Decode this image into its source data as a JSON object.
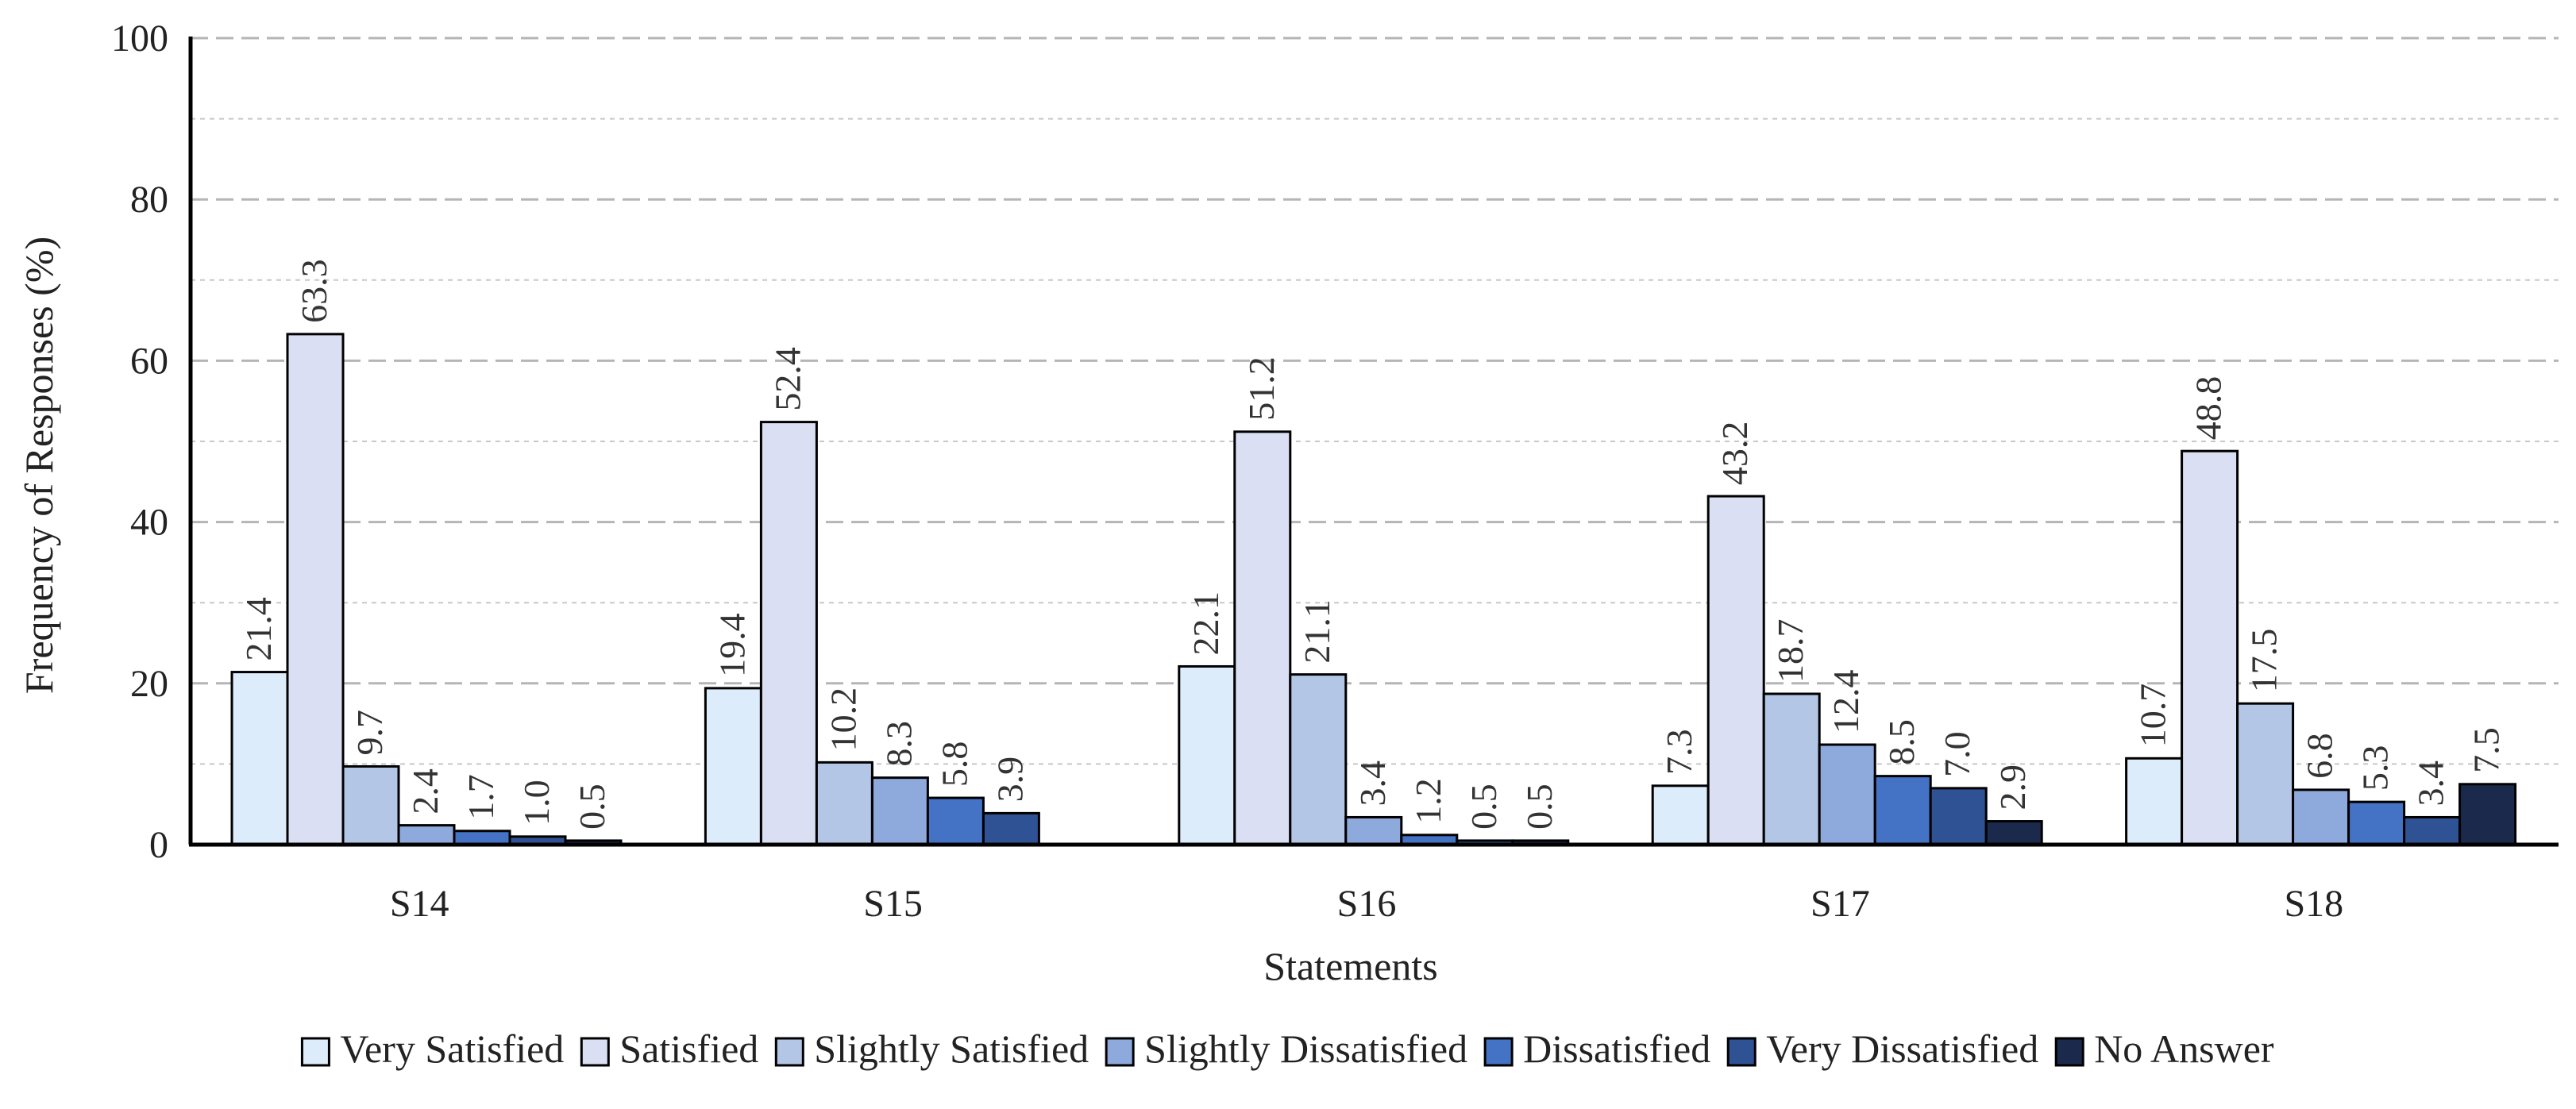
{
  "chart_data": {
    "type": "bar",
    "title": "",
    "xlabel": "Statements",
    "ylabel": "Frequency of Responses (%)",
    "ylim": [
      0,
      100
    ],
    "yticks": [
      0,
      20,
      40,
      60,
      80,
      100
    ],
    "grid": true,
    "legend_position": "bottom",
    "categories": [
      "S14",
      "S15",
      "S16",
      "S17",
      "S18"
    ],
    "series": [
      {
        "name": "Very Satisfied",
        "color": "#dcecfb",
        "values": [
          21.4,
          19.4,
          22.1,
          7.3,
          10.7
        ],
        "labels": [
          "21.4",
          "19.4",
          "22.1",
          "7.3",
          "10.7"
        ]
      },
      {
        "name": "Satisfied",
        "color": "#dbdff3",
        "values": [
          63.3,
          52.4,
          51.2,
          43.2,
          48.8
        ],
        "labels": [
          "63.3",
          "52.4",
          "51.2",
          "43.2",
          "48.8"
        ]
      },
      {
        "name": "Slightly Satisfied",
        "color": "#b3c6e6",
        "values": [
          9.7,
          10.2,
          21.1,
          18.7,
          17.5
        ],
        "labels": [
          "9.7",
          "10.2",
          "21.1",
          "18.7",
          "17.5"
        ]
      },
      {
        "name": "Slightly Dissatisfied",
        "color": "#8eaadd",
        "values": [
          2.4,
          8.3,
          3.4,
          12.4,
          6.8
        ],
        "labels": [
          "2.4",
          "8.3",
          "3.4",
          "12.4",
          "6.8"
        ]
      },
      {
        "name": "Dissatisfied",
        "color": "#4472c4",
        "values": [
          1.7,
          5.8,
          1.2,
          8.5,
          5.3
        ],
        "labels": [
          "1.7",
          "5.8",
          "1.2",
          "8.5",
          "5.3"
        ]
      },
      {
        "name": "Very Dissatisfied",
        "color": "#2f5294",
        "values": [
          1.0,
          3.9,
          0.5,
          7.0,
          3.4
        ],
        "labels": [
          "1.0",
          "3.9",
          "0.5",
          "7.0",
          "3.4"
        ]
      },
      {
        "name": "No Answer",
        "color": "#1b2a4c",
        "values": [
          0.5,
          0.0,
          0.5,
          2.9,
          7.5
        ],
        "labels": [
          "0.5",
          "",
          "0.5",
          "2.9",
          "7.5"
        ]
      }
    ]
  }
}
